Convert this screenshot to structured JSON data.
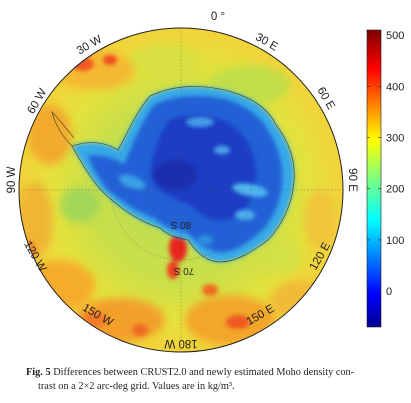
{
  "figure": {
    "longitude_labels": [
      {
        "text": "0 °",
        "lon": 0
      },
      {
        "text": "30 E",
        "lon": 30
      },
      {
        "text": "60 E",
        "lon": 60
      },
      {
        "text": "90 E",
        "lon": 90
      },
      {
        "text": "120 E",
        "lon": 120
      },
      {
        "text": "150 E",
        "lon": 150
      },
      {
        "text": "180 W",
        "lon": 180
      },
      {
        "text": "150 W",
        "lon": -150
      },
      {
        "text": "120 W",
        "lon": -120
      },
      {
        "text": "90 W",
        "lon": -90
      },
      {
        "text": "60 W",
        "lon": -60
      },
      {
        "text": "30 W",
        "lon": -30
      }
    ],
    "latitude_labels": [
      {
        "text": "80 S",
        "lat": -80
      },
      {
        "text": "70 S",
        "lat": -70
      }
    ],
    "colorbar": {
      "colormap": "jet",
      "min": -70,
      "max": 510,
      "ticks": [
        0,
        100,
        200,
        300,
        400,
        500
      ],
      "tick_labels": [
        "0",
        "100",
        "200",
        "300",
        "400",
        "500"
      ]
    }
  },
  "caption": {
    "label": "Fig. 5",
    "text_line1": "Differences between CRUST2.0 and newly estimated Moho density con-",
    "text_line2": "trast on a 2×2 arc-deg grid. Values are in kg/m³."
  }
}
